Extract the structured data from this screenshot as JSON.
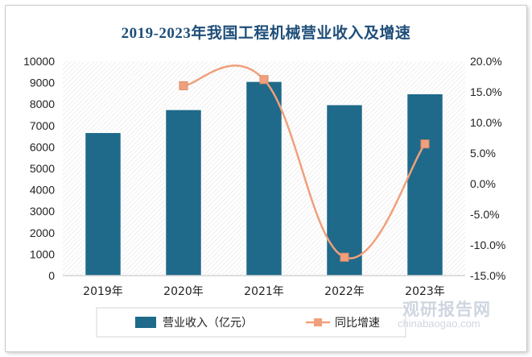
{
  "title": "2019-2023年我国工程机械营业收入及增速",
  "watermark": {
    "brand": "观研报告网",
    "url": "chinabaogao.com"
  },
  "colors": {
    "bar": "#1f6a8a",
    "line": "#f0a07c",
    "title": "#1f4e79"
  },
  "chart_data": {
    "type": "bar+line",
    "categories": [
      "2019年",
      "2020年",
      "2021年",
      "2022年",
      "2023年"
    ],
    "series": [
      {
        "name": "营业收入（亿元）",
        "type": "bar",
        "axis": "left",
        "values": [
          6680,
          7751,
          9065,
          7980,
          8490
        ]
      },
      {
        "name": "同比增速",
        "type": "line",
        "axis": "right",
        "values": [
          null,
          16.0,
          17.0,
          -12.0,
          6.5
        ]
      }
    ],
    "left_axis": {
      "min": 0,
      "max": 10000,
      "step": 1000,
      "ticks": [
        "0",
        "1000",
        "2000",
        "3000",
        "4000",
        "5000",
        "6000",
        "7000",
        "8000",
        "9000",
        "10000"
      ]
    },
    "right_axis": {
      "min": -15,
      "max": 20,
      "step": 5,
      "ticks": [
        "-15.0%",
        "-10.0%",
        "-5.0%",
        "0.0%",
        "5.0%",
        "10.0%",
        "15.0%",
        "20.0%"
      ]
    },
    "legend_position": "bottom",
    "grid": false
  }
}
